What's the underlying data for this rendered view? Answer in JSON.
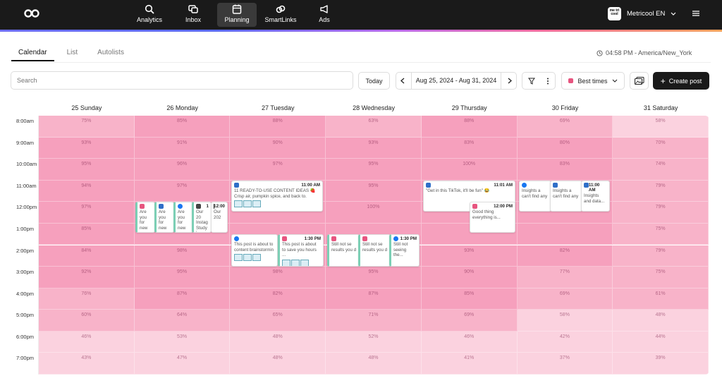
{
  "nav": {
    "items": [
      {
        "label": "Analytics",
        "icon": "analytics-icon"
      },
      {
        "label": "Inbox",
        "icon": "inbox-icon"
      },
      {
        "label": "Planning",
        "icon": "calendar-icon"
      },
      {
        "label": "SmartLinks",
        "icon": "link-icon"
      },
      {
        "label": "Ads",
        "icon": "megaphone-icon"
      }
    ],
    "account": "Metricool EN",
    "account_logo": "me tri cool"
  },
  "tabs": [
    "Calendar",
    "List",
    "Autolists"
  ],
  "timezone": "04:58 PM - America/New_York",
  "toolbar": {
    "search_placeholder": "Search",
    "today": "Today",
    "date_range": "Aug 25, 2024 - Aug 31, 2024",
    "best_times": "Best times",
    "create_post": "Create post"
  },
  "days": [
    "25 Sunday",
    "26 Monday",
    "27 Tuesday",
    "28 Wednesday",
    "29 Thursday",
    "30 Friday",
    "31 Saturday"
  ],
  "times": [
    "8:00am",
    "9:00am",
    "10:00am",
    "11:00am",
    "12:00pm",
    "1:00pm",
    "2:00pm",
    "3:00pm",
    "4:00pm",
    "5:00pm",
    "6:00pm",
    "7:00pm"
  ],
  "percentages": [
    [
      75,
      85,
      88,
      63,
      88,
      69,
      58
    ],
    [
      93,
      91,
      90,
      93,
      83,
      80,
      70
    ],
    [
      95,
      96,
      97,
      95,
      100,
      83,
      74
    ],
    [
      94,
      97,
      null,
      95,
      null,
      null,
      79
    ],
    [
      97,
      null,
      null,
      100,
      null,
      null,
      79
    ],
    [
      85,
      null,
      null,
      null,
      null,
      null,
      75
    ],
    [
      84,
      98,
      null,
      null,
      93,
      82,
      79
    ],
    [
      92,
      95,
      98,
      95,
      90,
      77,
      75
    ],
    [
      76,
      87,
      82,
      87,
      85,
      69,
      61
    ],
    [
      60,
      64,
      65,
      71,
      69,
      58,
      48
    ],
    [
      46,
      53,
      48,
      52,
      46,
      42,
      44
    ],
    [
      43,
      47,
      48,
      48,
      41,
      37,
      39
    ]
  ],
  "hidden_under_cards": {
    "tue_12pm": "89%",
    "wed_1pm": "",
    "fri_12pm": "81%"
  },
  "posts": {
    "tue_11": {
      "time": "11:00 AM",
      "text": "11 READY-TO-USE CONTENT IDEAS 🍓 Crisp air, pumpkin spice, and back to."
    },
    "tue_130a": {
      "time": "",
      "text": "This post is about to content brainstormin"
    },
    "tue_130b": {
      "time": "1:30 PM",
      "text": "This post is about to save you hours ..."
    },
    "wed_a": {
      "text": "Still not se results you d"
    },
    "wed_b": {
      "text": "Still not se results you d"
    },
    "wed_c": {
      "time": "1:30 PM",
      "text": "Still not seeing the..."
    },
    "thu_11": {
      "time": "11:01 AM",
      "text": "\"Get in this TikTok, it'll be fun\" 😂"
    },
    "thu_12": {
      "time": "12:00 PM",
      "text": "Good thing everything is..."
    },
    "fri_a": {
      "text": "Insights a can't find any"
    },
    "fri_b": {
      "text": "Insights a can't find any"
    },
    "fri_c": {
      "time": "11:00 AM",
      "text": "Insights and data..."
    },
    "mon_a": {
      "text": "Are you for new"
    },
    "mon_b": {
      "text": "Are you for new"
    },
    "mon_c": {
      "text": "Are you for new"
    },
    "mon_d": {
      "time": "1",
      "text": "Our 20 Instag Study i"
    },
    "mon_e": {
      "time": "12:00",
      "text": "Our 202"
    }
  },
  "colors": {
    "pink_hi": "#f6a0bd",
    "pink_mid": "#f8b3c9",
    "pink_lo": "#fbd2df"
  }
}
